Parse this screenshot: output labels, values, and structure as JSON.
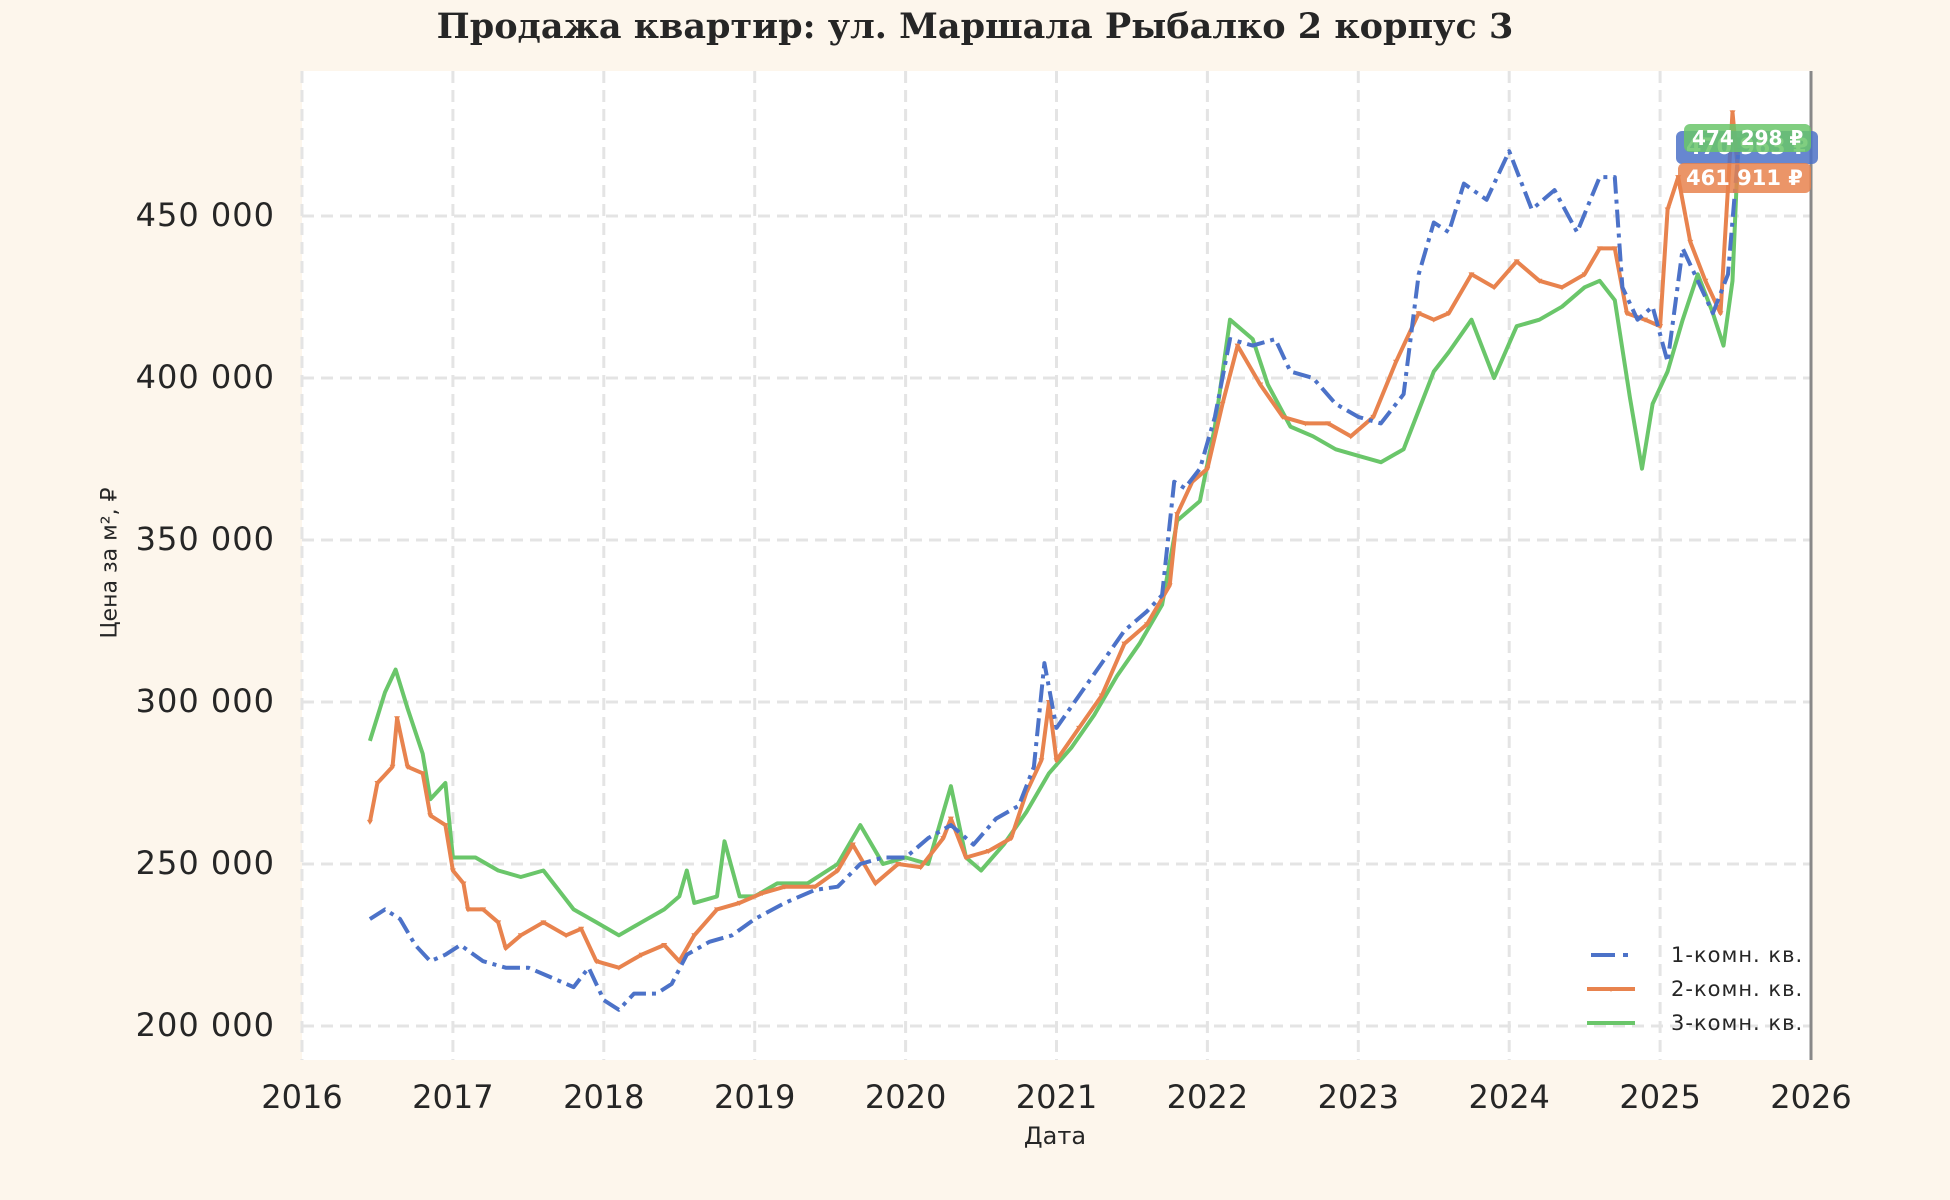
{
  "chart_data": {
    "type": "line",
    "title": "Продажа квартир: ул. Маршала Рыбалко 2 корпус 3",
    "xlabel": "Дата",
    "ylabel": "Цена за м², ₽",
    "xlim": [
      2016,
      2026
    ],
    "ylim": [
      190000,
      485000
    ],
    "x_ticks": [
      "2016",
      "2017",
      "2018",
      "2019",
      "2020",
      "2021",
      "2022",
      "2023",
      "2024",
      "2025",
      "2026"
    ],
    "y_ticks": [
      "200 000",
      "250 000",
      "300 000",
      "350 000",
      "400 000",
      "450 000"
    ],
    "y_tick_values": [
      200000,
      250000,
      300000,
      350000,
      400000,
      450000
    ],
    "grid": true,
    "legend_position": "lower right",
    "series": [
      {
        "name": "1-комн. кв.",
        "color": "#4c72c8",
        "style": "dashdot",
        "last_value_label": "470 963 ₽",
        "points": [
          [
            2016.45,
            233000
          ],
          [
            2016.55,
            236000
          ],
          [
            2016.65,
            233000
          ],
          [
            2016.75,
            225000
          ],
          [
            2016.85,
            220000
          ],
          [
            2016.95,
            222000
          ],
          [
            2017.05,
            225000
          ],
          [
            2017.2,
            220000
          ],
          [
            2017.35,
            218000
          ],
          [
            2017.5,
            218000
          ],
          [
            2017.65,
            215000
          ],
          [
            2017.8,
            212000
          ],
          [
            2017.9,
            218000
          ],
          [
            2018.0,
            208000
          ],
          [
            2018.1,
            205000
          ],
          [
            2018.2,
            210000
          ],
          [
            2018.35,
            210000
          ],
          [
            2018.45,
            213000
          ],
          [
            2018.55,
            222000
          ],
          [
            2018.7,
            226000
          ],
          [
            2018.85,
            228000
          ],
          [
            2019.0,
            233000
          ],
          [
            2019.2,
            238000
          ],
          [
            2019.4,
            242000
          ],
          [
            2019.55,
            243000
          ],
          [
            2019.7,
            250000
          ],
          [
            2019.85,
            252000
          ],
          [
            2020.0,
            252000
          ],
          [
            2020.15,
            258000
          ],
          [
            2020.3,
            262000
          ],
          [
            2020.45,
            256000
          ],
          [
            2020.6,
            264000
          ],
          [
            2020.75,
            268000
          ],
          [
            2020.85,
            280000
          ],
          [
            2020.92,
            312000
          ],
          [
            2021.0,
            292000
          ],
          [
            2021.15,
            302000
          ],
          [
            2021.3,
            312000
          ],
          [
            2021.45,
            322000
          ],
          [
            2021.6,
            328000
          ],
          [
            2021.7,
            333000
          ],
          [
            2021.78,
            368000
          ],
          [
            2021.85,
            366000
          ],
          [
            2021.95,
            372000
          ],
          [
            2022.05,
            388000
          ],
          [
            2022.15,
            412000
          ],
          [
            2022.3,
            410000
          ],
          [
            2022.45,
            412000
          ],
          [
            2022.55,
            402000
          ],
          [
            2022.7,
            400000
          ],
          [
            2022.85,
            392000
          ],
          [
            2023.0,
            388000
          ],
          [
            2023.15,
            386000
          ],
          [
            2023.3,
            395000
          ],
          [
            2023.4,
            432000
          ],
          [
            2023.5,
            448000
          ],
          [
            2023.6,
            445000
          ],
          [
            2023.7,
            460000
          ],
          [
            2023.85,
            455000
          ],
          [
            2024.0,
            470000
          ],
          [
            2024.15,
            452000
          ],
          [
            2024.3,
            458000
          ],
          [
            2024.45,
            445000
          ],
          [
            2024.6,
            462000
          ],
          [
            2024.7,
            462000
          ],
          [
            2024.75,
            428000
          ],
          [
            2024.85,
            418000
          ],
          [
            2024.95,
            422000
          ],
          [
            2025.05,
            405000
          ],
          [
            2025.15,
            440000
          ],
          [
            2025.25,
            430000
          ],
          [
            2025.35,
            420000
          ],
          [
            2025.45,
            432000
          ],
          [
            2025.52,
            470963
          ]
        ]
      },
      {
        "name": "2-комн. кв.",
        "color": "#e8834e",
        "style": "solid-marker",
        "last_value_label": "461 911 ₽",
        "points": [
          [
            2016.45,
            263000
          ],
          [
            2016.5,
            275000
          ],
          [
            2016.6,
            280000
          ],
          [
            2016.63,
            295000
          ],
          [
            2016.7,
            280000
          ],
          [
            2016.8,
            278000
          ],
          [
            2016.85,
            265000
          ],
          [
            2016.95,
            262000
          ],
          [
            2017.0,
            248000
          ],
          [
            2017.07,
            244000
          ],
          [
            2017.1,
            236000
          ],
          [
            2017.2,
            236000
          ],
          [
            2017.3,
            232000
          ],
          [
            2017.35,
            224000
          ],
          [
            2017.45,
            228000
          ],
          [
            2017.6,
            232000
          ],
          [
            2017.75,
            228000
          ],
          [
            2017.85,
            230000
          ],
          [
            2017.95,
            220000
          ],
          [
            2018.1,
            218000
          ],
          [
            2018.25,
            222000
          ],
          [
            2018.4,
            225000
          ],
          [
            2018.5,
            220000
          ],
          [
            2018.6,
            228000
          ],
          [
            2018.75,
            236000
          ],
          [
            2018.9,
            238000
          ],
          [
            2019.05,
            241000
          ],
          [
            2019.2,
            243000
          ],
          [
            2019.4,
            243000
          ],
          [
            2019.55,
            248000
          ],
          [
            2019.65,
            256000
          ],
          [
            2019.8,
            244000
          ],
          [
            2019.95,
            250000
          ],
          [
            2020.1,
            249000
          ],
          [
            2020.25,
            258000
          ],
          [
            2020.3,
            264000
          ],
          [
            2020.4,
            252000
          ],
          [
            2020.55,
            254000
          ],
          [
            2020.7,
            258000
          ],
          [
            2020.8,
            272000
          ],
          [
            2020.9,
            282000
          ],
          [
            2020.95,
            300000
          ],
          [
            2021.0,
            282000
          ],
          [
            2021.15,
            292000
          ],
          [
            2021.3,
            302000
          ],
          [
            2021.45,
            318000
          ],
          [
            2021.6,
            324000
          ],
          [
            2021.75,
            336000
          ],
          [
            2021.8,
            358000
          ],
          [
            2021.9,
            368000
          ],
          [
            2022.0,
            372000
          ],
          [
            2022.1,
            392000
          ],
          [
            2022.2,
            410000
          ],
          [
            2022.35,
            398000
          ],
          [
            2022.5,
            388000
          ],
          [
            2022.65,
            386000
          ],
          [
            2022.8,
            386000
          ],
          [
            2022.95,
            382000
          ],
          [
            2023.1,
            388000
          ],
          [
            2023.25,
            405000
          ],
          [
            2023.4,
            420000
          ],
          [
            2023.5,
            418000
          ],
          [
            2023.6,
            420000
          ],
          [
            2023.75,
            432000
          ],
          [
            2023.9,
            428000
          ],
          [
            2024.05,
            436000
          ],
          [
            2024.2,
            430000
          ],
          [
            2024.35,
            428000
          ],
          [
            2024.5,
            432000
          ],
          [
            2024.6,
            440000
          ],
          [
            2024.7,
            440000
          ],
          [
            2024.78,
            420000
          ],
          [
            2024.9,
            418000
          ],
          [
            2025.0,
            416000
          ],
          [
            2025.05,
            452000
          ],
          [
            2025.12,
            462000
          ],
          [
            2025.2,
            442000
          ],
          [
            2025.3,
            430000
          ],
          [
            2025.4,
            420000
          ],
          [
            2025.48,
            482000
          ],
          [
            2025.52,
            461911
          ]
        ]
      },
      {
        "name": "3-комн. кв.",
        "color": "#6ac66a",
        "style": "solid",
        "last_value_label": "474 298 ₽",
        "points": [
          [
            2016.45,
            288000
          ],
          [
            2016.55,
            303000
          ],
          [
            2016.62,
            310000
          ],
          [
            2016.7,
            298000
          ],
          [
            2016.8,
            284000
          ],
          [
            2016.85,
            270000
          ],
          [
            2016.95,
            275000
          ],
          [
            2017.0,
            252000
          ],
          [
            2017.15,
            252000
          ],
          [
            2017.3,
            248000
          ],
          [
            2017.45,
            246000
          ],
          [
            2017.6,
            248000
          ],
          [
            2017.7,
            242000
          ],
          [
            2017.8,
            236000
          ],
          [
            2017.95,
            232000
          ],
          [
            2018.1,
            228000
          ],
          [
            2018.25,
            232000
          ],
          [
            2018.4,
            236000
          ],
          [
            2018.5,
            240000
          ],
          [
            2018.55,
            248000
          ],
          [
            2018.6,
            238000
          ],
          [
            2018.75,
            240000
          ],
          [
            2018.8,
            257000
          ],
          [
            2018.9,
            240000
          ],
          [
            2019.0,
            240000
          ],
          [
            2019.15,
            244000
          ],
          [
            2019.35,
            244000
          ],
          [
            2019.55,
            250000
          ],
          [
            2019.7,
            262000
          ],
          [
            2019.85,
            250000
          ],
          [
            2020.0,
            252000
          ],
          [
            2020.15,
            250000
          ],
          [
            2020.3,
            274000
          ],
          [
            2020.4,
            252000
          ],
          [
            2020.5,
            248000
          ],
          [
            2020.65,
            256000
          ],
          [
            2020.8,
            266000
          ],
          [
            2020.95,
            278000
          ],
          [
            2021.1,
            286000
          ],
          [
            2021.25,
            296000
          ],
          [
            2021.4,
            308000
          ],
          [
            2021.55,
            318000
          ],
          [
            2021.7,
            330000
          ],
          [
            2021.8,
            356000
          ],
          [
            2021.95,
            362000
          ],
          [
            2022.05,
            385000
          ],
          [
            2022.15,
            418000
          ],
          [
            2022.3,
            412000
          ],
          [
            2022.4,
            398000
          ],
          [
            2022.55,
            385000
          ],
          [
            2022.7,
            382000
          ],
          [
            2022.85,
            378000
          ],
          [
            2023.0,
            376000
          ],
          [
            2023.15,
            374000
          ],
          [
            2023.3,
            378000
          ],
          [
            2023.4,
            390000
          ],
          [
            2023.5,
            402000
          ],
          [
            2023.6,
            408000
          ],
          [
            2023.75,
            418000
          ],
          [
            2023.9,
            400000
          ],
          [
            2024.05,
            416000
          ],
          [
            2024.2,
            418000
          ],
          [
            2024.35,
            422000
          ],
          [
            2024.5,
            428000
          ],
          [
            2024.6,
            430000
          ],
          [
            2024.7,
            424000
          ],
          [
            2024.8,
            394000
          ],
          [
            2024.88,
            372000
          ],
          [
            2024.95,
            392000
          ],
          [
            2025.05,
            402000
          ],
          [
            2025.15,
            418000
          ],
          [
            2025.25,
            432000
          ],
          [
            2025.35,
            420000
          ],
          [
            2025.42,
            410000
          ],
          [
            2025.48,
            430000
          ],
          [
            2025.52,
            474298
          ]
        ]
      }
    ]
  },
  "legend": {
    "items": [
      {
        "label": "1-комн. кв."
      },
      {
        "label": "2-комн. кв."
      },
      {
        "label": "3-комн. кв."
      }
    ]
  },
  "badges": {
    "green": "474 298 ₽",
    "blue": "470 963 ₽",
    "orange": "461 911 ₽"
  }
}
